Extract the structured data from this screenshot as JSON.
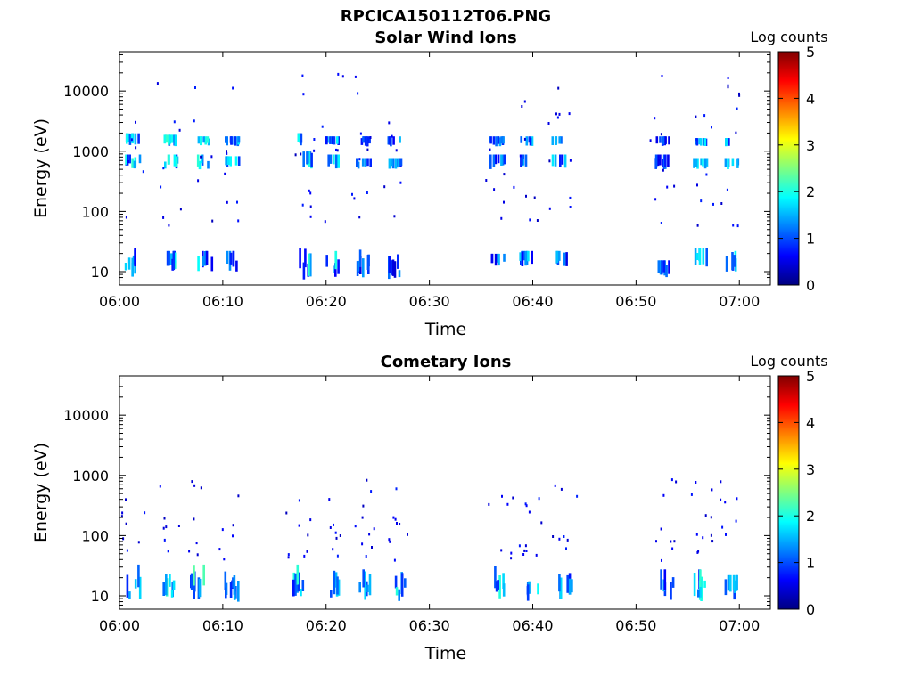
{
  "figure": {
    "title": "RPCICA150112T06.PNG"
  },
  "colors": {
    "axis": "#000000",
    "colormap": [
      "#000080",
      "#0000ff",
      "#00ffff",
      "#ffff00",
      "#ff0000",
      "#800000"
    ]
  },
  "chart_data": [
    {
      "type": "heatmap",
      "title": "Solar Wind Ions",
      "xlabel": "Time",
      "ylabel": "Energy (eV)",
      "yscale": "log",
      "ylim": [
        6,
        45000
      ],
      "xlim": [
        "06:00",
        "07:03"
      ],
      "x_ticks": [
        "06:00",
        "06:10",
        "06:20",
        "06:30",
        "06:40",
        "06:50",
        "07:00"
      ],
      "y_ticks": [
        "10",
        "100",
        "1000",
        "10000"
      ],
      "colorbar": {
        "label": "Log counts",
        "range": [
          0,
          5
        ],
        "ticks": [
          "0",
          "1",
          "2",
          "3",
          "4",
          "5"
        ]
      },
      "bursts": [
        {
          "t": 1.2,
          "wide": [
            [
              1200,
              1800
            ],
            [
              500,
              800
            ],
            [
              8,
              22
            ]
          ],
          "peak": 2.0
        },
        {
          "t": 4.8,
          "wide": [
            [
              1200,
              1700
            ],
            [
              500,
              800
            ],
            [
              10,
              20
            ]
          ],
          "peak": 2.2
        },
        {
          "t": 8.2,
          "wide": [
            [
              1200,
              1600
            ],
            [
              500,
              800
            ],
            [
              10,
              20
            ]
          ],
          "peak": 2.0
        },
        {
          "t": 10.8,
          "wide": [
            [
              1200,
              1600
            ],
            [
              500,
              750
            ],
            [
              10,
              20
            ]
          ],
          "peak": 1.8
        },
        {
          "t": 17.8,
          "wide": [
            [
              1200,
              1800
            ],
            [
              500,
              900
            ],
            [
              7,
              22
            ]
          ],
          "peak": 2.3
        },
        {
          "t": 20.5,
          "wide": [
            [
              1200,
              1600
            ],
            [
              500,
              800
            ],
            [
              8,
              20
            ]
          ],
          "peak": 2.0
        },
        {
          "t": 23.5,
          "wide": [
            [
              1200,
              1600
            ],
            [
              500,
              700
            ],
            [
              7,
              22
            ]
          ],
          "peak": 1.6
        },
        {
          "t": 26.5,
          "wide": [
            [
              1200,
              1600
            ],
            [
              500,
              700
            ],
            [
              7,
              18
            ]
          ],
          "peak": 1.5
        },
        {
          "t": 36.5,
          "wide": [
            [
              1200,
              1600
            ],
            [
              500,
              800
            ],
            [
              12,
              18
            ]
          ],
          "peak": 1.6
        },
        {
          "t": 39.2,
          "wide": [
            [
              1200,
              1600
            ],
            [
              500,
              800
            ],
            [
              12,
              20
            ]
          ],
          "peak": 1.9
        },
        {
          "t": 42.5,
          "wide": [
            [
              1200,
              1600
            ],
            [
              500,
              800
            ],
            [
              12,
              20
            ]
          ],
          "peak": 1.8
        },
        {
          "t": 52.5,
          "wide": [
            [
              1200,
              1600
            ],
            [
              500,
              800
            ],
            [
              8,
              14
            ]
          ],
          "peak": 1.4
        },
        {
          "t": 56.2,
          "wide": [
            [
              1200,
              1500
            ],
            [
              500,
              700
            ],
            [
              12,
              22
            ]
          ],
          "peak": 1.9
        },
        {
          "t": 59.2,
          "wide": [
            [
              1200,
              1500
            ],
            [
              500,
              700
            ],
            [
              10,
              20
            ]
          ],
          "peak": 2.0
        }
      ],
      "scatter_range": [
        60,
        20000
      ]
    },
    {
      "type": "heatmap",
      "title": "Cometary Ions",
      "xlabel": "Time",
      "ylabel": "Energy (eV)",
      "yscale": "log",
      "ylim": [
        6,
        45000
      ],
      "xlim": [
        "06:00",
        "07:03"
      ],
      "x_ticks": [
        "06:00",
        "06:10",
        "06:20",
        "06:30",
        "06:40",
        "06:50",
        "07:00"
      ],
      "y_ticks": [
        "10",
        "100",
        "1000",
        "10000"
      ],
      "colorbar": {
        "label": "Log counts",
        "range": [
          0,
          5
        ],
        "ticks": [
          "0",
          "1",
          "2",
          "3",
          "4",
          "5"
        ]
      },
      "bursts": [
        {
          "t": 1.2,
          "wide": [
            [
              8,
              30
            ]
          ],
          "peak": 2.0
        },
        {
          "t": 4.5,
          "wide": [
            [
              8,
              30
            ]
          ],
          "peak": 2.2
        },
        {
          "t": 7.5,
          "wide": [
            [
              8,
              30
            ]
          ],
          "peak": 2.2
        },
        {
          "t": 10.8,
          "wide": [
            [
              8,
              25
            ]
          ],
          "peak": 1.8
        },
        {
          "t": 17.2,
          "wide": [
            [
              8,
              30
            ]
          ],
          "peak": 2.0
        },
        {
          "t": 20.8,
          "wide": [
            [
              8,
              28
            ]
          ],
          "peak": 2.0
        },
        {
          "t": 23.8,
          "wide": [
            [
              8,
              25
            ]
          ],
          "peak": 1.6
        },
        {
          "t": 27.0,
          "wide": [
            [
              8,
              25
            ]
          ],
          "peak": 2.0
        },
        {
          "t": 36.8,
          "wide": [
            [
              8,
              28
            ]
          ],
          "peak": 2.0
        },
        {
          "t": 39.8,
          "wide": [
            [
              8,
              28
            ]
          ],
          "peak": 2.0
        },
        {
          "t": 43.0,
          "wide": [
            [
              8,
              25
            ]
          ],
          "peak": 1.8
        },
        {
          "t": 52.8,
          "wide": [
            [
              8,
              25
            ]
          ],
          "peak": 1.6
        },
        {
          "t": 56.2,
          "wide": [
            [
              8,
              25
            ]
          ],
          "peak": 2.0
        },
        {
          "t": 59.0,
          "wide": [
            [
              8,
              20
            ]
          ],
          "peak": 1.8
        }
      ],
      "scatter_range": [
        40,
        900
      ]
    }
  ]
}
